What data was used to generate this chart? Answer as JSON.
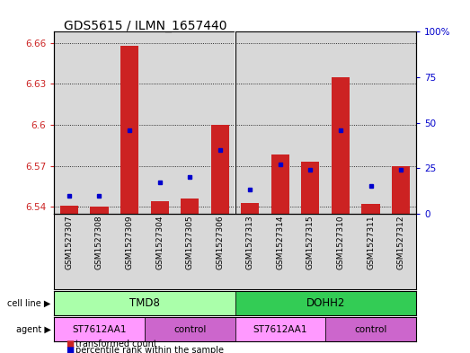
{
  "title": "GDS5615 / ILMN_1657440",
  "samples": [
    "GSM1527307",
    "GSM1527308",
    "GSM1527309",
    "GSM1527304",
    "GSM1527305",
    "GSM1527306",
    "GSM1527313",
    "GSM1527314",
    "GSM1527315",
    "GSM1527310",
    "GSM1527311",
    "GSM1527312"
  ],
  "transformed_count": [
    6.541,
    6.54,
    6.658,
    6.544,
    6.546,
    6.6,
    6.543,
    6.578,
    6.573,
    6.635,
    6.542,
    6.57
  ],
  "percentile_rank": [
    10,
    10,
    46,
    17,
    20,
    35,
    13,
    27,
    24,
    46,
    15,
    24
  ],
  "ylim_left": [
    6.535,
    6.668
  ],
  "ylim_right": [
    0,
    100
  ],
  "yticks_left": [
    6.54,
    6.57,
    6.6,
    6.63,
    6.66
  ],
  "yticks_right": [
    0,
    25,
    50,
    75,
    100
  ],
  "bar_color": "#CC2222",
  "dot_color": "#0000CC",
  "base_value": 6.535,
  "bg_color": "#FFFFFF",
  "axis_bg": "#D8D8D8",
  "cell_line_colors": [
    "#AAFFAA",
    "#33CC55"
  ],
  "cell_line_labels": [
    "TMD8",
    "DOHH2"
  ],
  "agent_colors": [
    "#FF99FF",
    "#CC66CC",
    "#FF99FF",
    "#CC66CC"
  ],
  "agent_labels": [
    "ST7612AA1",
    "control",
    "ST7612AA1",
    "control"
  ],
  "legend_labels": [
    "transformed count",
    "percentile rank within the sample"
  ],
  "legend_colors": [
    "#CC2222",
    "#0000CC"
  ]
}
